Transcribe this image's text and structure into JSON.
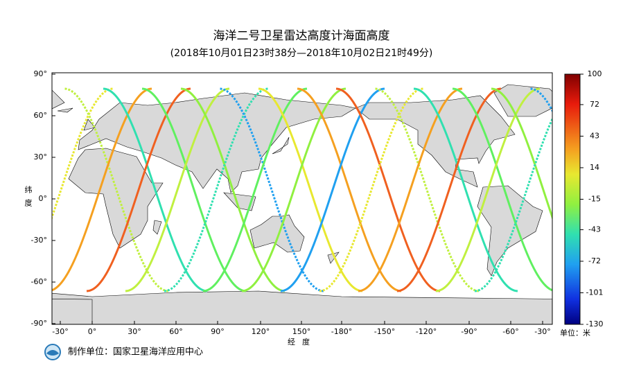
{
  "header": {
    "title": "海洋二号卫星雷达高度计海面高度",
    "subtitle": "(2018年10月01日23时38分—2018年10月02日21时49分)"
  },
  "map": {
    "x_axis_label": "经度",
    "y_axis_label": "纬度",
    "x_tick_labels": [
      "-30°",
      "0°",
      "30°",
      "60°",
      "90°",
      "120°",
      "150°",
      "-180°",
      "-150°",
      "-120°",
      "-90°",
      "-60°",
      "-30°"
    ],
    "y_tick_labels": [
      "90°",
      "60°",
      "30°",
      "0°",
      "-30°",
      "-60°",
      "-90°"
    ]
  },
  "colorbar": {
    "lim": [
      -130,
      100
    ],
    "ticks": [
      100,
      72,
      43,
      14,
      -15,
      -43,
      -72,
      -101,
      -130
    ],
    "unit_label": "单位：米"
  },
  "footer": {
    "producer": "制作单位：国家卫星海洋应用中心"
  }
}
